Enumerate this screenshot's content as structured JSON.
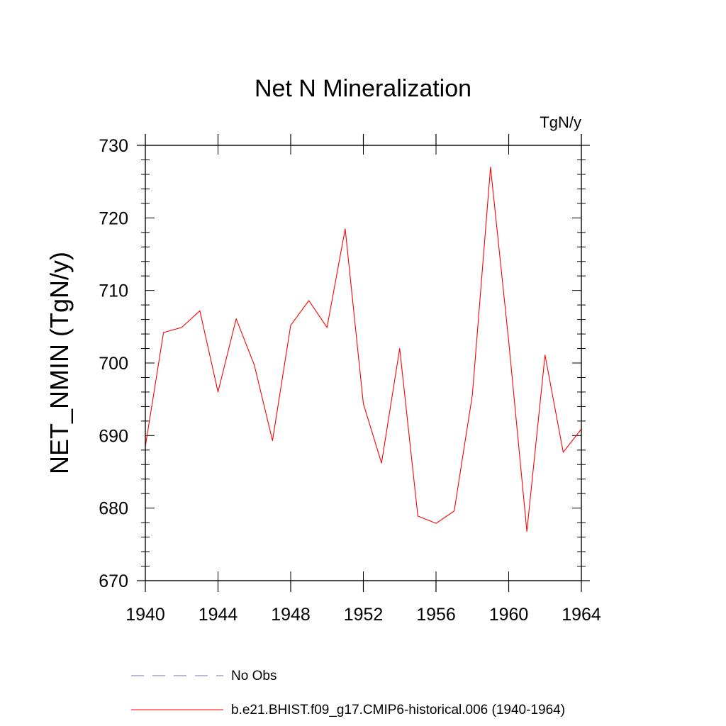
{
  "chart_data": {
    "type": "line",
    "title": "Net N Mineralization",
    "units_label": "TgN/y",
    "ylabel": "NET_NMIN  (TgN/y)",
    "xlabel": "",
    "xlim": [
      1940,
      1964
    ],
    "ylim": [
      670,
      730
    ],
    "x_ticks": [
      1940,
      1944,
      1948,
      1952,
      1956,
      1960,
      1964
    ],
    "y_ticks": [
      670,
      680,
      690,
      700,
      710,
      720,
      730
    ],
    "grid": false,
    "legend_position": "bottom",
    "series": [
      {
        "name": "b.e21.BHIST.f09_g17.CMIP6-historical.006 (1940-1964)",
        "color": "#ff0000",
        "style": "solid",
        "x": [
          1940,
          1941,
          1942,
          1943,
          1944,
          1945,
          1946,
          1947,
          1948,
          1949,
          1950,
          1951,
          1952,
          1953,
          1954,
          1955,
          1956,
          1957,
          1958,
          1959,
          1960,
          1961,
          1962,
          1963,
          1964
        ],
        "y": [
          688.5,
          704.2,
          704.9,
          707.2,
          696.0,
          706.1,
          699.7,
          689.3,
          705.2,
          708.6,
          704.9,
          718.5,
          694.4,
          686.2,
          702.0,
          678.9,
          677.9,
          679.6,
          695.6,
          727.0,
          703.0,
          676.8,
          701.1,
          687.7,
          690.9
        ]
      }
    ],
    "legend": [
      {
        "label": "No Obs",
        "color": "#7070b8",
        "style": "dashed"
      },
      {
        "label": "b.e21.BHIST.f09_g17.CMIP6-historical.006 (1940-1964)",
        "color": "#ff0000",
        "style": "solid"
      }
    ]
  }
}
